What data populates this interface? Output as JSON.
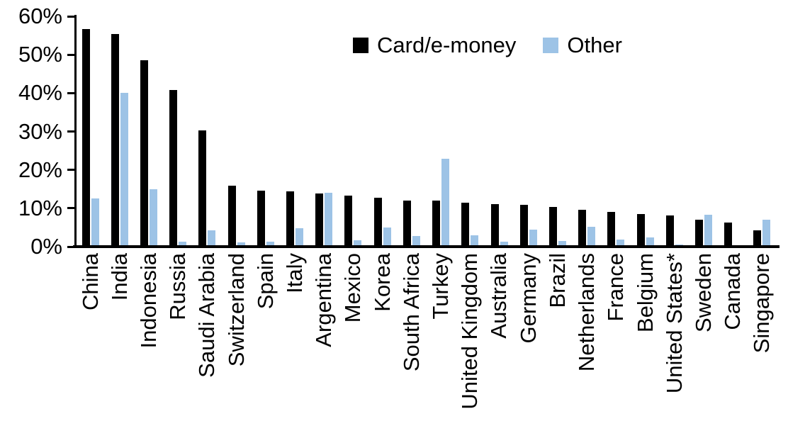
{
  "chart_data": {
    "type": "bar",
    "title": "",
    "xlabel": "",
    "ylabel": "",
    "ylim": [
      0,
      60
    ],
    "y_tick_step": 10,
    "y_tick_labels": [
      "0%",
      "10%",
      "20%",
      "30%",
      "40%",
      "50%",
      "60%"
    ],
    "grid": false,
    "legend_position": "top-center",
    "categories": [
      "China",
      "India",
      "Indonesia",
      "Russia",
      "Saudi Arabia",
      "Switzerland",
      "Spain",
      "Italy",
      "Argentina",
      "Mexico",
      "Korea",
      "South Africa",
      "Turkey",
      "United Kingdom",
      "Australia",
      "Germany",
      "Brazil",
      "Netherlands",
      "France",
      "Belgium",
      "United States*",
      "Sweden",
      "Canada",
      "Singapore"
    ],
    "series": [
      {
        "name": "Card/e-money",
        "color": "#000000",
        "values": [
          56.3,
          55.0,
          48.2,
          40.4,
          29.9,
          15.5,
          14.2,
          14.1,
          13.4,
          12.9,
          12.3,
          11.7,
          11.6,
          11.1,
          10.8,
          10.5,
          9.9,
          9.3,
          8.6,
          8.1,
          7.8,
          6.6,
          6.0,
          3.9
        ]
      },
      {
        "name": "Other",
        "color": "#9dc3e6",
        "values": [
          12.2,
          39.7,
          14.5,
          1.0,
          3.9,
          0.8,
          1.0,
          4.5,
          13.7,
          1.3,
          4.6,
          2.4,
          22.6,
          2.5,
          0.9,
          4.0,
          1.2,
          4.8,
          1.5,
          2.0,
          0.2,
          8.0,
          0.0,
          6.7
        ]
      }
    ]
  }
}
